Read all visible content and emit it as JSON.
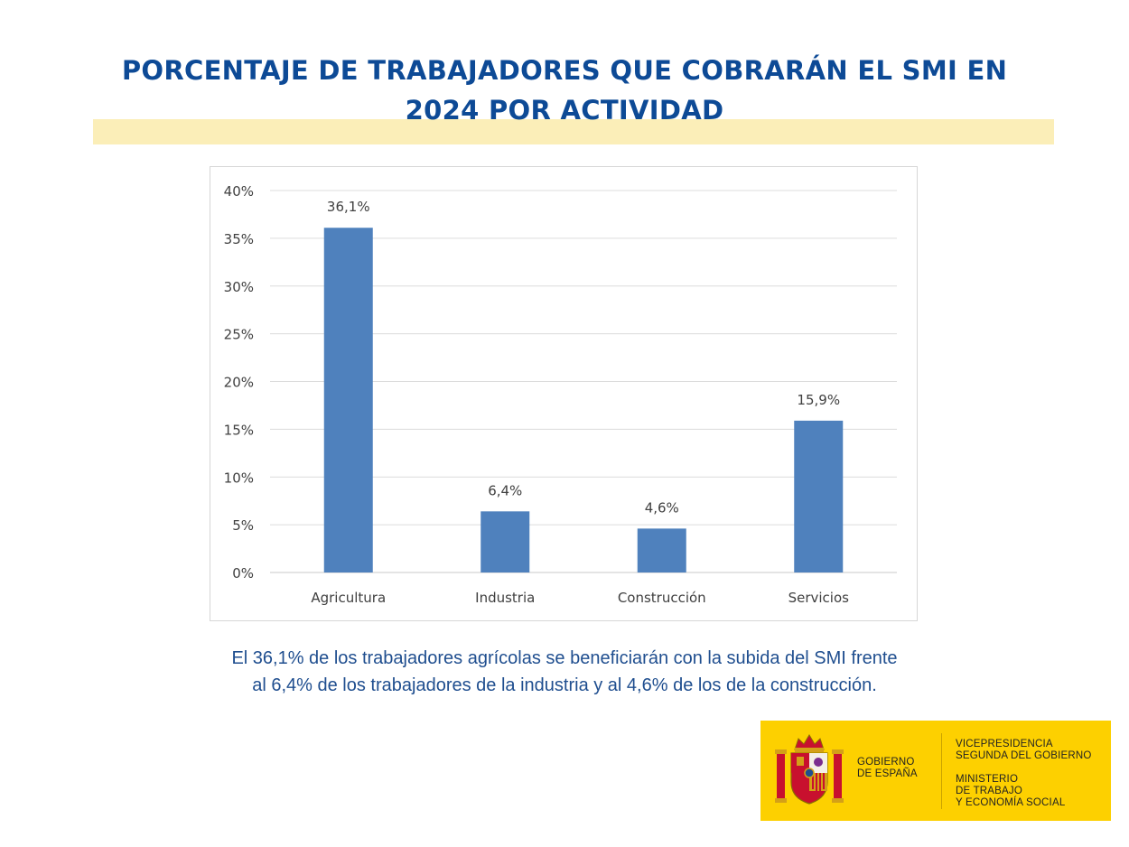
{
  "title": {
    "line1": "PORCENTAJE DE TRABAJADORES QUE COBRARÁN EL SMI EN",
    "line2": "2024 POR ACTIVIDAD"
  },
  "chart_data": {
    "type": "bar",
    "title": "",
    "xlabel": "",
    "ylabel": "",
    "categories": [
      "Agricultura",
      "Industria",
      "Construcción",
      "Servicios"
    ],
    "values": [
      36.1,
      6.4,
      4.6,
      15.9
    ],
    "data_labels": [
      "36,1%",
      "6,4%",
      "4,6%",
      "15,9%"
    ],
    "ylim": [
      0,
      40
    ],
    "yticks": [
      0,
      5,
      10,
      15,
      20,
      25,
      30,
      35,
      40
    ],
    "ytick_labels": [
      "0%",
      "5%",
      "10%",
      "15%",
      "20%",
      "25%",
      "30%",
      "35%",
      "40%"
    ],
    "grid": true,
    "legend": "none",
    "bar_color": "#4f81bd"
  },
  "caption": {
    "line1": "El 36,1% de los trabajadores agrícolas se beneficiarán con la subida del SMI frente",
    "line2": "al 6,4% de los trabajadores de la industria y al 4,6% de los de la construcción."
  },
  "logo": {
    "gov_line1": "GOBIERNO",
    "gov_line2": "DE ESPAÑA",
    "dept_line1": "VICEPRESIDENCIA",
    "dept_line2": "SEGUNDA DEL GOBIERNO",
    "dept_line3": "MINISTERIO",
    "dept_line4": "DE TRABAJO",
    "dept_line5": "Y ECONOMÍA SOCIAL",
    "background_color": "#fdd000"
  },
  "colors": {
    "title": "#0d4a96",
    "caption": "#1f4e8f",
    "highlight": "#fbeeb8"
  }
}
